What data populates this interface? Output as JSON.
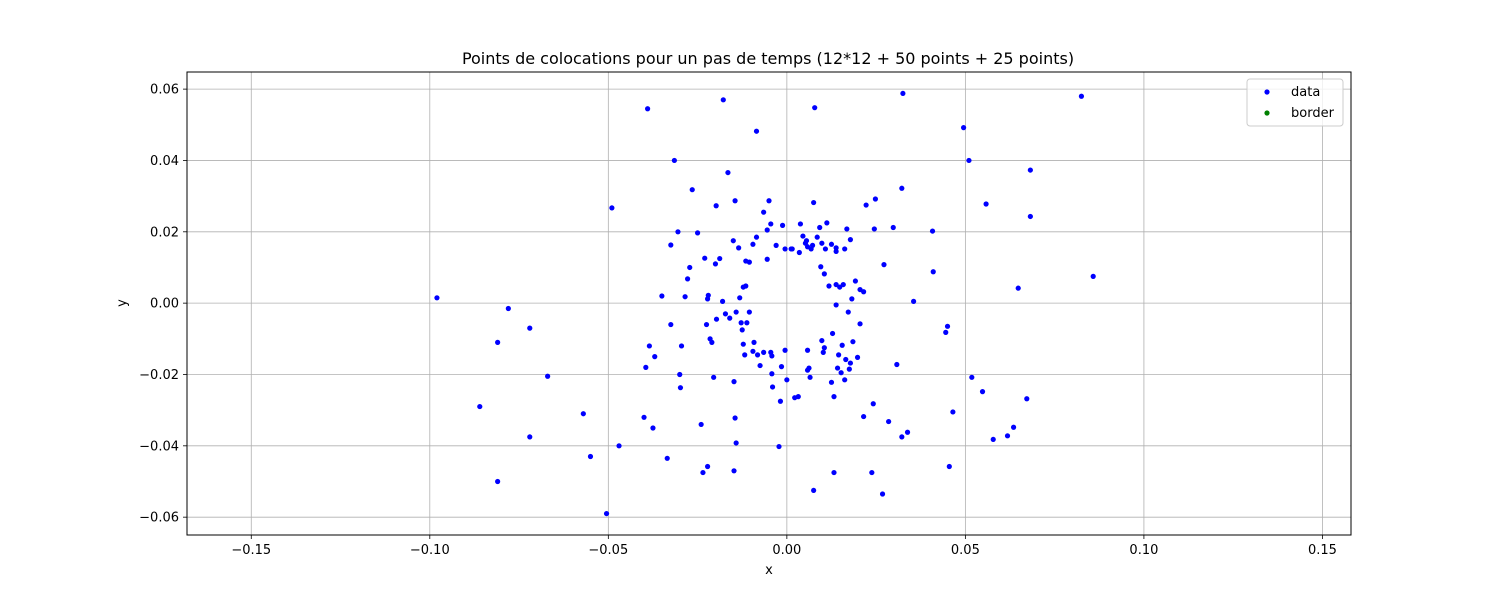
{
  "chart_data": {
    "type": "scatter",
    "title": "Points de colocations pour un pas de temps (12*12 + 50 points + 25 points)",
    "xlabel": "x",
    "ylabel": "y",
    "xlim": [
      -0.168,
      0.158
    ],
    "ylim": [
      -0.065,
      0.0648
    ],
    "xticks": [
      -0.15,
      -0.1,
      -0.05,
      0.0,
      0.05,
      0.1,
      0.15
    ],
    "xtick_labels": [
      "−0.15",
      "−0.10",
      "−0.05",
      "0.00",
      "0.05",
      "0.10",
      "0.15"
    ],
    "yticks": [
      -0.06,
      -0.04,
      -0.02,
      0.0,
      0.02,
      0.04,
      0.06
    ],
    "ytick_labels": [
      "−0.06",
      "−0.04",
      "−0.02",
      "0.00",
      "0.02",
      "0.04",
      "0.06"
    ],
    "grid": true,
    "legend_position": "top-right",
    "series": [
      {
        "name": "data",
        "color": "#0000ff",
        "points": [
          [
            -0.098,
            0.0015
          ],
          [
            -0.086,
            -0.029
          ],
          [
            -0.081,
            -0.011
          ],
          [
            -0.081,
            -0.05
          ],
          [
            -0.078,
            -0.0015
          ],
          [
            -0.072,
            -0.007
          ],
          [
            -0.072,
            -0.0375
          ],
          [
            -0.067,
            -0.0205
          ],
          [
            -0.057,
            -0.031
          ],
          [
            -0.055,
            -0.043
          ],
          [
            -0.0505,
            -0.059
          ],
          [
            -0.049,
            0.0267
          ],
          [
            -0.047,
            -0.04
          ],
          [
            -0.04,
            -0.032
          ],
          [
            -0.0395,
            -0.018
          ],
          [
            -0.039,
            0.0545
          ],
          [
            -0.0385,
            -0.012
          ],
          [
            -0.0375,
            -0.035
          ],
          [
            -0.037,
            -0.015
          ],
          [
            -0.035,
            0.002
          ],
          [
            -0.0335,
            -0.0435
          ],
          [
            -0.0325,
            0.0163
          ],
          [
            -0.0325,
            -0.006
          ],
          [
            -0.0315,
            0.04
          ],
          [
            -0.0305,
            0.02
          ],
          [
            -0.03,
            -0.02
          ],
          [
            -0.0298,
            -0.0237
          ],
          [
            -0.0295,
            -0.012
          ],
          [
            -0.0285,
            0.0018
          ],
          [
            -0.0278,
            0.0068
          ],
          [
            -0.0272,
            0.01
          ],
          [
            -0.0265,
            0.0318
          ],
          [
            -0.025,
            0.0197
          ],
          [
            -0.024,
            -0.034
          ],
          [
            -0.0235,
            -0.0475
          ],
          [
            -0.023,
            0.0126
          ],
          [
            -0.0225,
            -0.006
          ],
          [
            -0.0222,
            -0.0458
          ],
          [
            -0.0222,
            0.0012
          ],
          [
            -0.022,
            0.0022
          ],
          [
            -0.0215,
            -0.01
          ],
          [
            -0.021,
            -0.011
          ],
          [
            -0.0205,
            -0.0208
          ],
          [
            -0.02,
            0.011
          ],
          [
            -0.0198,
            0.0273
          ],
          [
            -0.0197,
            -0.0045
          ],
          [
            -0.0188,
            0.0125
          ],
          [
            -0.018,
            0.0005
          ],
          [
            -0.0178,
            0.057
          ],
          [
            -0.0172,
            -0.003
          ],
          [
            -0.0165,
            0.0366
          ],
          [
            -0.016,
            -0.0042
          ],
          [
            -0.015,
            0.0175
          ],
          [
            -0.0148,
            -0.022
          ],
          [
            -0.0148,
            -0.047
          ],
          [
            -0.0145,
            0.0287
          ],
          [
            -0.0145,
            -0.0322
          ],
          [
            -0.0142,
            -0.0025
          ],
          [
            -0.0142,
            -0.0392
          ],
          [
            -0.0135,
            0.0155
          ],
          [
            -0.0132,
            0.0015
          ],
          [
            -0.0128,
            -0.0055
          ],
          [
            -0.0125,
            -0.0075
          ],
          [
            -0.0122,
            0.0045
          ],
          [
            -0.0122,
            -0.0115
          ],
          [
            -0.0118,
            -0.0145
          ],
          [
            -0.0115,
            0.0048
          ],
          [
            -0.0115,
            0.0118
          ],
          [
            -0.0112,
            -0.0055
          ],
          [
            -0.0105,
            0.0115
          ],
          [
            -0.0105,
            -0.0025
          ],
          [
            -0.0095,
            -0.0135
          ],
          [
            -0.0095,
            0.0165
          ],
          [
            -0.0092,
            -0.011
          ],
          [
            -0.0085,
            0.0482
          ],
          [
            -0.0085,
            0.0185
          ],
          [
            -0.0082,
            -0.0145
          ],
          [
            -0.0075,
            -0.0175
          ],
          [
            -0.0065,
            0.0255
          ],
          [
            -0.0065,
            -0.0138
          ],
          [
            -0.0055,
            0.0123
          ],
          [
            -0.0055,
            0.0205
          ],
          [
            -0.005,
            0.0287
          ],
          [
            -0.0045,
            0.0222
          ],
          [
            -0.0045,
            -0.0138
          ],
          [
            -0.0042,
            -0.0148
          ],
          [
            -0.0042,
            -0.0198
          ],
          [
            -0.004,
            -0.0235
          ],
          [
            -0.003,
            0.0162
          ],
          [
            -0.0022,
            -0.0402
          ],
          [
            -0.0018,
            -0.0275
          ],
          [
            -0.0015,
            -0.0178
          ],
          [
            -0.0012,
            0.0218
          ],
          [
            -0.0005,
            0.0152
          ],
          [
            -0.0005,
            -0.0132
          ],
          [
            0.0,
            -0.0215
          ],
          [
            0.0012,
            0.0152
          ],
          [
            0.0015,
            0.0152
          ],
          [
            0.0022,
            -0.0265
          ],
          [
            0.0032,
            -0.0262
          ],
          [
            0.0035,
            0.0142
          ],
          [
            0.0038,
            0.0222
          ],
          [
            0.0045,
            0.0188
          ],
          [
            0.0052,
            0.0168
          ],
          [
            0.0055,
            0.0175
          ],
          [
            0.0058,
            0.0158
          ],
          [
            0.0058,
            -0.0132
          ],
          [
            0.0058,
            -0.0188
          ],
          [
            0.0062,
            -0.0182
          ],
          [
            0.0065,
            -0.0208
          ],
          [
            0.0068,
            0.0152
          ],
          [
            0.0072,
            0.0162
          ],
          [
            0.0075,
            0.0282
          ],
          [
            0.0078,
            0.0548
          ],
          [
            0.0075,
            -0.0525
          ],
          [
            0.0085,
            0.0185
          ],
          [
            0.0092,
            0.0212
          ],
          [
            0.0095,
            0.0102
          ],
          [
            0.0098,
            -0.0105
          ],
          [
            0.0098,
            0.0168
          ],
          [
            0.0102,
            -0.0138
          ],
          [
            0.0105,
            -0.0125
          ],
          [
            0.0105,
            0.0082
          ],
          [
            0.0108,
            0.0152
          ],
          [
            0.0112,
            0.0225
          ],
          [
            0.0118,
            0.0048
          ],
          [
            0.0125,
            0.0165
          ],
          [
            0.0125,
            -0.0222
          ],
          [
            0.0128,
            -0.0085
          ],
          [
            0.0132,
            -0.0475
          ],
          [
            0.0132,
            -0.0262
          ],
          [
            0.0138,
            0.0145
          ],
          [
            0.0138,
            0.0155
          ],
          [
            0.0138,
            0.0052
          ],
          [
            0.0138,
            -0.0005
          ],
          [
            0.0142,
            -0.0182
          ],
          [
            0.0145,
            -0.0145
          ],
          [
            0.0148,
            0.0045
          ],
          [
            0.0152,
            -0.0195
          ],
          [
            0.0155,
            -0.0118
          ],
          [
            0.0158,
            0.0052
          ],
          [
            0.0162,
            0.0152
          ],
          [
            0.0162,
            -0.0215
          ],
          [
            0.0165,
            -0.0158
          ],
          [
            0.0168,
            0.0208
          ],
          [
            0.0172,
            -0.0025
          ],
          [
            0.0175,
            -0.0185
          ],
          [
            0.0178,
            0.0178
          ],
          [
            0.0178,
            -0.0168
          ],
          [
            0.0182,
            0.0012
          ],
          [
            0.0185,
            -0.0108
          ],
          [
            0.0192,
            0.0062
          ],
          [
            0.0198,
            -0.0152
          ],
          [
            0.0205,
            -0.0058
          ],
          [
            0.0205,
            0.0038
          ],
          [
            0.0215,
            0.0032
          ],
          [
            0.0215,
            -0.0318
          ],
          [
            0.0222,
            0.0275
          ],
          [
            0.0238,
            -0.0475
          ],
          [
            0.0242,
            -0.0282
          ],
          [
            0.0245,
            0.0208
          ],
          [
            0.0248,
            0.0292
          ],
          [
            0.0268,
            -0.0535
          ],
          [
            0.0272,
            0.0108
          ],
          [
            0.0285,
            -0.0332
          ],
          [
            0.0298,
            0.0212
          ],
          [
            0.0308,
            -0.0172
          ],
          [
            0.0322,
            0.0322
          ],
          [
            0.0325,
            0.0588
          ],
          [
            0.0322,
            -0.0375
          ],
          [
            0.0338,
            -0.0362
          ],
          [
            0.0355,
            0.0005
          ],
          [
            0.0408,
            0.0202
          ],
          [
            0.041,
            0.0088
          ],
          [
            0.0445,
            -0.0082
          ],
          [
            0.045,
            -0.0065
          ],
          [
            0.0455,
            -0.0458
          ],
          [
            0.0465,
            -0.0305
          ],
          [
            0.0495,
            0.0492
          ],
          [
            0.051,
            0.04
          ],
          [
            0.0518,
            -0.0208
          ],
          [
            0.0548,
            -0.0248
          ],
          [
            0.0558,
            0.0278
          ],
          [
            0.0578,
            -0.0382
          ],
          [
            0.0618,
            -0.0372
          ],
          [
            0.0635,
            -0.0348
          ],
          [
            0.0648,
            0.0042
          ],
          [
            0.0672,
            -0.0268
          ],
          [
            0.0682,
            0.0243
          ],
          [
            0.0682,
            0.0373
          ],
          [
            0.0825,
            0.058
          ],
          [
            0.0858,
            0.0075
          ]
        ]
      },
      {
        "name": "border",
        "color": "#008000",
        "points": []
      }
    ]
  }
}
